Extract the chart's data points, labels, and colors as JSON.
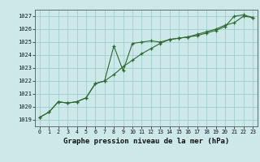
{
  "title": "Graphe pression niveau de la mer (hPa)",
  "background_color": "#cce8e8",
  "grid_color": "#9ecece",
  "line_color": "#2d6a2d",
  "xlim": [
    -0.5,
    23.5
  ],
  "ylim": [
    1018.5,
    1027.5
  ],
  "xticks": [
    0,
    1,
    2,
    3,
    4,
    5,
    6,
    7,
    8,
    9,
    10,
    11,
    12,
    13,
    14,
    15,
    16,
    17,
    18,
    19,
    20,
    21,
    22,
    23
  ],
  "yticks": [
    1019,
    1020,
    1021,
    1022,
    1023,
    1024,
    1025,
    1026,
    1027
  ],
  "series1_x": [
    0,
    1,
    2,
    3,
    4,
    5,
    6,
    7,
    8,
    9,
    10,
    11,
    12,
    13,
    14,
    15,
    16,
    17,
    18,
    19,
    20,
    21,
    22,
    23
  ],
  "series1_y": [
    1019.2,
    1019.6,
    1020.4,
    1020.3,
    1020.4,
    1020.7,
    1021.8,
    1022.0,
    1024.7,
    1022.8,
    1024.9,
    1025.0,
    1025.1,
    1025.0,
    1025.2,
    1025.3,
    1025.4,
    1025.5,
    1025.7,
    1025.9,
    1026.2,
    1027.0,
    1027.1,
    1026.9
  ],
  "series2_x": [
    0,
    1,
    2,
    3,
    4,
    5,
    6,
    7,
    8,
    9,
    10,
    11,
    12,
    13,
    14,
    15,
    16,
    17,
    18,
    19,
    20,
    21,
    22,
    23
  ],
  "series2_y": [
    1019.2,
    1019.6,
    1020.4,
    1020.3,
    1020.4,
    1020.7,
    1021.8,
    1022.0,
    1022.5,
    1023.1,
    1023.6,
    1024.1,
    1024.5,
    1024.9,
    1025.2,
    1025.3,
    1025.4,
    1025.6,
    1025.8,
    1026.0,
    1026.3,
    1026.5,
    1027.0,
    1026.9
  ],
  "ylabel_fontsize": 5.5,
  "xlabel_fontsize": 5.5,
  "title_fontsize": 6.5
}
